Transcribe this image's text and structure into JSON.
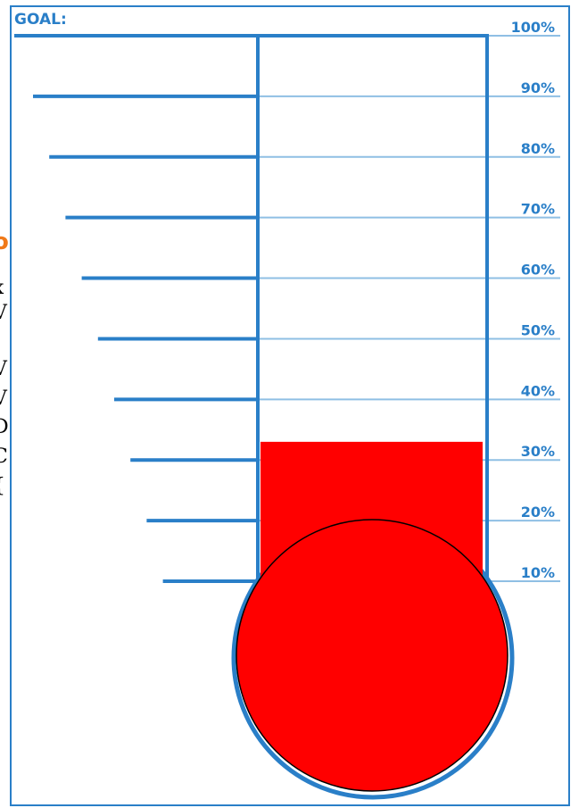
{
  "chart_data": {
    "type": "thermometer",
    "title": "GOAL:",
    "value_percent": 33,
    "ticks": [
      "10%",
      "20%",
      "30%",
      "40%",
      "50%",
      "60%",
      "70%",
      "80%",
      "90%",
      "100%"
    ],
    "tick_values": [
      10,
      20,
      30,
      40,
      50,
      60,
      70,
      80,
      90,
      100
    ]
  },
  "colors": {
    "outline": "#2a7fc8",
    "guide": "#8fbfe4",
    "fill": "#ff0000",
    "label": "#2a7fc8"
  },
  "cropped_text_fragments": [
    "o",
    "x",
    "V",
    "V",
    "V",
    "D",
    "C",
    "{"
  ]
}
